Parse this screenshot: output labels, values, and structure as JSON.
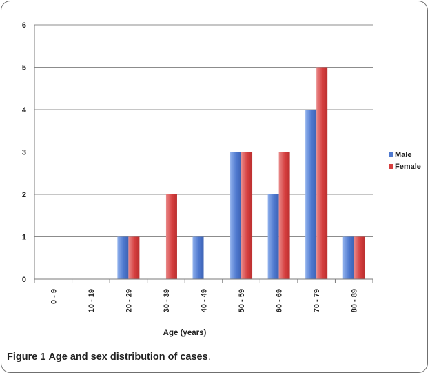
{
  "caption": {
    "figure_label": "Figure 1",
    "text": "Age and sex distribution of cases",
    "trailing": "."
  },
  "colors": {
    "male": "#4f79cf",
    "female": "#d63f3f",
    "grid": "#8c8c8c"
  },
  "chart_data": {
    "type": "bar",
    "title": "",
    "xlabel": "Age (years)",
    "ylabel": "",
    "ylim": [
      0,
      6
    ],
    "yticks": [
      0,
      1,
      2,
      3,
      4,
      5,
      6
    ],
    "grid": true,
    "legend_position": "right",
    "categories": [
      "0 - 9",
      "10 - 19",
      "20 - 29",
      "30 - 39",
      "40 - 49",
      "50 - 59",
      "60 - 69",
      "70 - 79",
      "80 - 89"
    ],
    "series": [
      {
        "name": "Male",
        "color": "#4f79cf",
        "values": [
          0,
          0,
          1,
          0,
          1,
          3,
          2,
          4,
          1
        ]
      },
      {
        "name": "Female",
        "color": "#d63f3f",
        "values": [
          0,
          0,
          1,
          2,
          0,
          3,
          3,
          5,
          1
        ]
      }
    ]
  }
}
